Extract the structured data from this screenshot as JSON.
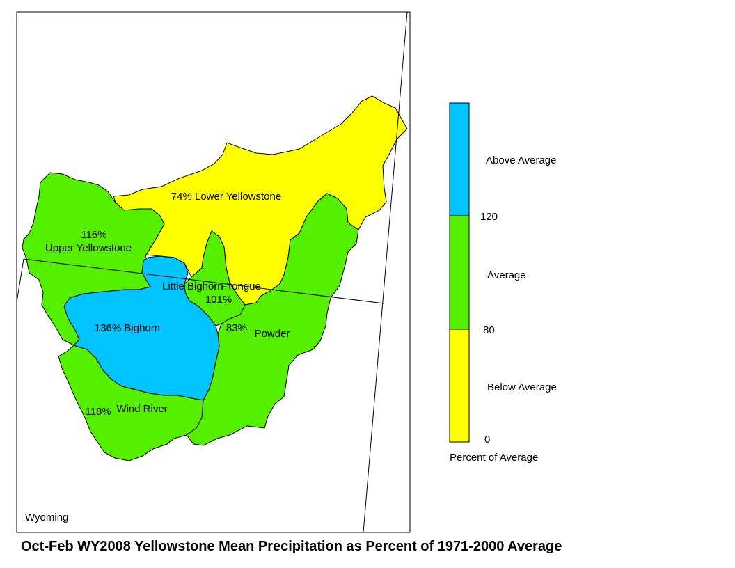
{
  "colors": {
    "above": "#00C4FF",
    "average": "#55F000",
    "below": "#FFFF00"
  },
  "map": {
    "state_label": "Wyoming",
    "basins": [
      {
        "name": "Lower Yellowstone",
        "percent": "74%",
        "category": "below"
      },
      {
        "name": "Upper Yellowstone",
        "percent": "116%",
        "category": "average"
      },
      {
        "name": "Little Bighorn-Tongue",
        "percent": "101%",
        "category": "average"
      },
      {
        "name": "Bighorn",
        "percent": "136%",
        "category": "above"
      },
      {
        "name": "Powder",
        "percent": "83%",
        "category": "average"
      },
      {
        "name": "Wind River",
        "percent": "118%",
        "category": "average"
      }
    ],
    "labels": {
      "lower_yellowstone": "74% Lower Yellowstone",
      "upper_yellowstone_pct": "116%",
      "upper_yellowstone_name": "Upper Yellowstone",
      "little_bighorn_name": "Little Bighorn-Tongue",
      "little_bighorn_pct": "101%",
      "bighorn": "136%  Bighorn",
      "powder_pct": "83%",
      "powder_name": "Powder",
      "wind_river_pct": "118%",
      "wind_river_name": "Wind River"
    }
  },
  "legend": {
    "above_label": "Above Average",
    "average_label": "Average",
    "below_label": "Below Average",
    "tick_120": "120",
    "tick_80": "80",
    "tick_0": "0",
    "caption": "Percent of Average"
  },
  "title": "Oct-Feb WY2008 Yellowstone Mean Precipitation as Percent of 1971-2000 Average"
}
